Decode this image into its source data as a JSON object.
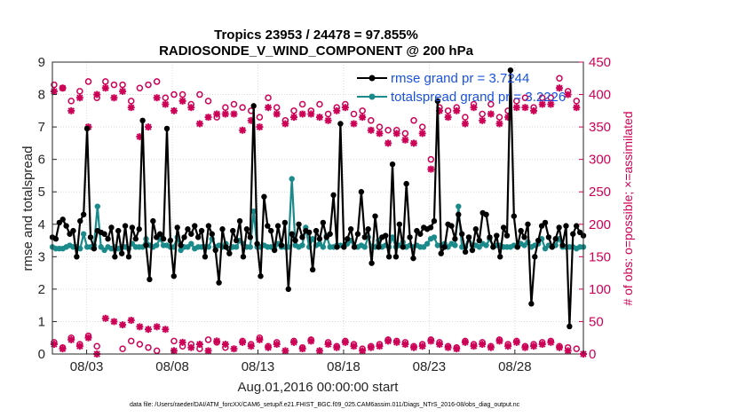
{
  "chart_data": {
    "type": "line",
    "title_line1": "Tropics 23953 / 24478 = 97.855%",
    "title_line2": "RADIOSONDE_V_WIND_COMPONENT @ 200 hPa",
    "xlabel": "Aug.01,2016 00:00:00 start",
    "ylabel_left": "rmse and totalspread",
    "ylabel_right": "# of obs: o=possible; ×=assimilated",
    "xlim": [
      1.0,
      32.0
    ],
    "ylim_left": [
      0,
      9
    ],
    "ylim_right": [
      0,
      450
    ],
    "x_ticks": [
      {
        "value": 3,
        "label": "08/03"
      },
      {
        "value": 8,
        "label": "08/08"
      },
      {
        "value": 13,
        "label": "08/13"
      },
      {
        "value": 18,
        "label": "08/18"
      },
      {
        "value": 23,
        "label": "08/23"
      },
      {
        "value": 28,
        "label": "08/28"
      }
    ],
    "y_ticks_left": [
      "0",
      "1",
      "2",
      "3",
      "4",
      "5",
      "6",
      "7",
      "8",
      "9"
    ],
    "y_ticks_right": [
      "0",
      "50",
      "100",
      "150",
      "200",
      "250",
      "300",
      "350",
      "400",
      "450"
    ],
    "legend": [
      {
        "label": "rmse grand pr = 3.7244",
        "color": "#000000"
      },
      {
        "label": "totalspread grand pr = 3.2226",
        "color": "#1a8a8a"
      }
    ],
    "footnote": "data file: /Users/raeder/DAI/ATM_forcXX/CAM6_setup/f.e21.FHIST_BGC.f09_025.CAM6assim.011/Diags_NTrS_2016-08/obs_diag_output.nc",
    "rmse": [
      3.6,
      3.55,
      4.05,
      4.15,
      3.95,
      3.7,
      3.8,
      3.0,
      4.1,
      4.3,
      6.95,
      3.6,
      3.25,
      3.8,
      3.75,
      3.7,
      3.55,
      3.9,
      3.0,
      3.8,
      3.1,
      3.95,
      3.0,
      3.9,
      3.55,
      3.85,
      7.2,
      3.35,
      2.3,
      4.1,
      3.6,
      3.7,
      3.55,
      6.95,
      3.5,
      2.4,
      3.9,
      3.35,
      3.6,
      3.85,
      3.7,
      3.95,
      3.6,
      3.8,
      3.0,
      3.95,
      3.7,
      3.2,
      2.2,
      3.85,
      3.3,
      3.1,
      3.8,
      3.5,
      4.1,
      3.0,
      3.85,
      3.6,
      7.65,
      3.4,
      2.4,
      4.85,
      3.95,
      3.8,
      3.2,
      3.95,
      3.35,
      4.05,
      2.0,
      3.7,
      3.5,
      4.0,
      3.6,
      3.8,
      3.75,
      2.6,
      3.8,
      3.55,
      4.05,
      3.6,
      3.7,
      4.9,
      3.3,
      7.1,
      3.3,
      3.55,
      3.85,
      3.3,
      3.7,
      5.0,
      3.6,
      3.85,
      2.8,
      4.25,
      3.3,
      3.6,
      3.65,
      3.0,
      5.85,
      3.0,
      4.0,
      3.3,
      5.25,
      3.6,
      2.95,
      3.8,
      3.7,
      3.9,
      3.85,
      3.9,
      4.1,
      7.8,
      3.1,
      3.3,
      4.0,
      3.95,
      3.55,
      4.3,
      3.7,
      3.15,
      3.6,
      3.2,
      3.85,
      3.5,
      4.35,
      4.3,
      3.6,
      3.3,
      3.65,
      3.0,
      3.9,
      3.65,
      8.75,
      4.25,
      3.3,
      3.8,
      3.6,
      4.0,
      1.55,
      3.0,
      3.5,
      3.95,
      4.05,
      3.6,
      3.3,
      3.55,
      3.9,
      3.35,
      3.95,
      0.85,
      3.7,
      3.95,
      3.75,
      3.65
    ],
    "totalspread": [
      3.3,
      3.25,
      3.25,
      3.25,
      3.3,
      3.35,
      3.3,
      3.3,
      3.25,
      3.7,
      3.3,
      3.3,
      3.35,
      4.55,
      3.3,
      3.2,
      3.3,
      3.25,
      3.3,
      3.25,
      3.3,
      3.3,
      3.25,
      3.4,
      3.3,
      3.3,
      3.3,
      3.55,
      3.35,
      3.3,
      3.35,
      3.55,
      3.35,
      3.35,
      3.3,
      3.3,
      3.6,
      3.2,
      3.3,
      3.3,
      3.4,
      3.25,
      3.3,
      3.3,
      3.3,
      3.3,
      3.55,
      3.3,
      3.35,
      3.3,
      3.4,
      3.25,
      3.3,
      3.3,
      3.5,
      3.4,
      3.3,
      3.3,
      4.4,
      3.3,
      3.3,
      3.35,
      3.3,
      3.3,
      3.3,
      3.4,
      3.3,
      3.3,
      3.3,
      5.4,
      3.35,
      3.3,
      3.35,
      3.9,
      3.3,
      3.55,
      3.35,
      3.4,
      3.3,
      3.65,
      3.3,
      3.3,
      3.35,
      3.35,
      3.3,
      3.4,
      3.5,
      3.3,
      3.3,
      3.35,
      3.3,
      3.6,
      3.3,
      3.3,
      3.5,
      3.3,
      3.35,
      3.3,
      3.6,
      3.3,
      3.35,
      3.45,
      3.3,
      3.35,
      3.3,
      3.35,
      3.3,
      3.3,
      3.4,
      3.55,
      3.6,
      3.35,
      3.35,
      3.4,
      3.3,
      3.4,
      3.35,
      4.55,
      3.3,
      3.3,
      3.6,
      3.35,
      3.35,
      3.3,
      3.4,
      3.35,
      3.55,
      3.3,
      3.35,
      3.35,
      3.3,
      3.3,
      3.3,
      3.35,
      3.3,
      3.4,
      3.35,
      3.45,
      3.3,
      3.35,
      3.4,
      3.55,
      3.25,
      3.35,
      3.3,
      3.35,
      3.55,
      3.3,
      3.3,
      3.3,
      3.3,
      3.25,
      3.3,
      3.3
    ],
    "obs_possible": [
      [
        1.1,
        415
      ],
      [
        1.6,
        410
      ],
      [
        2.1,
        390
      ],
      [
        2.6,
        405
      ],
      [
        3.1,
        420
      ],
      [
        3.6,
        395
      ],
      [
        4.1,
        420
      ],
      [
        4.6,
        415
      ],
      [
        5.1,
        415
      ],
      [
        5.6,
        390
      ],
      [
        6.1,
        410
      ],
      [
        6.6,
        415
      ],
      [
        7.1,
        420
      ],
      [
        7.6,
        395
      ],
      [
        8.1,
        400
      ],
      [
        8.6,
        400
      ],
      [
        9.1,
        385
      ],
      [
        9.6,
        400
      ],
      [
        10.1,
        390
      ],
      [
        10.6,
        365
      ],
      [
        11.1,
        380
      ],
      [
        11.6,
        385
      ],
      [
        12.1,
        380
      ],
      [
        12.6,
        375
      ],
      [
        13.1,
        365
      ],
      [
        13.6,
        395
      ],
      [
        14.1,
        380
      ],
      [
        14.6,
        360
      ],
      [
        15.1,
        375
      ],
      [
        15.6,
        385
      ],
      [
        16.1,
        375
      ],
      [
        16.6,
        385
      ],
      [
        17.1,
        370
      ],
      [
        17.6,
        380
      ],
      [
        18.1,
        385
      ],
      [
        18.6,
        370
      ],
      [
        19.1,
        375
      ],
      [
        19.6,
        360
      ],
      [
        20.1,
        350
      ],
      [
        20.6,
        345
      ],
      [
        21.1,
        345
      ],
      [
        21.6,
        340
      ],
      [
        22.1,
        360
      ],
      [
        22.6,
        350
      ],
      [
        23.1,
        300
      ],
      [
        23.6,
        380
      ],
      [
        24.1,
        375
      ],
      [
        24.6,
        380
      ],
      [
        25.1,
        365
      ],
      [
        25.6,
        385
      ],
      [
        26.1,
        370
      ],
      [
        26.6,
        385
      ],
      [
        27.1,
        365
      ],
      [
        27.6,
        375
      ],
      [
        28.1,
        390
      ],
      [
        28.6,
        395
      ],
      [
        29.1,
        380
      ],
      [
        29.6,
        395
      ],
      [
        30.1,
        395
      ],
      [
        30.6,
        425
      ],
      [
        31.1,
        405
      ],
      [
        31.6,
        390
      ]
    ],
    "obs_assimilated": [
      [
        1.1,
        405
      ],
      [
        1.6,
        410
      ],
      [
        2.1,
        375
      ],
      [
        2.6,
        395
      ],
      [
        3.1,
        350
      ],
      [
        3.6,
        400
      ],
      [
        4.1,
        410
      ],
      [
        4.6,
        395
      ],
      [
        5.1,
        405
      ],
      [
        5.6,
        380
      ],
      [
        6.1,
        335
      ],
      [
        6.6,
        350
      ],
      [
        7.1,
        395
      ],
      [
        7.6,
        385
      ],
      [
        8.1,
        375
      ],
      [
        8.6,
        390
      ],
      [
        9.1,
        380
      ],
      [
        9.6,
        355
      ],
      [
        10.1,
        365
      ],
      [
        10.6,
        370
      ],
      [
        11.1,
        370
      ],
      [
        11.6,
        370
      ],
      [
        12.1,
        345
      ],
      [
        12.6,
        360
      ],
      [
        13.1,
        350
      ],
      [
        13.6,
        380
      ],
      [
        14.1,
        370
      ],
      [
        14.6,
        355
      ],
      [
        15.1,
        365
      ],
      [
        15.6,
        370
      ],
      [
        16.1,
        370
      ],
      [
        16.6,
        365
      ],
      [
        17.1,
        360
      ],
      [
        17.6,
        375
      ],
      [
        18.1,
        380
      ],
      [
        18.6,
        355
      ],
      [
        19.1,
        365
      ],
      [
        19.6,
        345
      ],
      [
        20.1,
        340
      ],
      [
        20.6,
        325
      ],
      [
        21.1,
        340
      ],
      [
        21.6,
        330
      ],
      [
        22.1,
        325
      ],
      [
        22.6,
        340
      ],
      [
        23.1,
        285
      ],
      [
        23.6,
        375
      ],
      [
        24.1,
        365
      ],
      [
        24.6,
        375
      ],
      [
        25.1,
        355
      ],
      [
        25.6,
        380
      ],
      [
        26.1,
        360
      ],
      [
        26.6,
        370
      ],
      [
        27.1,
        355
      ],
      [
        27.6,
        365
      ],
      [
        28.1,
        380
      ],
      [
        28.6,
        380
      ],
      [
        29.1,
        375
      ],
      [
        29.6,
        385
      ],
      [
        30.1,
        385
      ],
      [
        30.6,
        410
      ],
      [
        31.1,
        400
      ],
      [
        31.6,
        380
      ]
    ],
    "obs_rejected_possible": [
      [
        1.1,
        18
      ],
      [
        1.6,
        10
      ],
      [
        2.1,
        25
      ],
      [
        2.6,
        15
      ],
      [
        3.1,
        28
      ],
      [
        3.6,
        12
      ],
      [
        5.1,
        8
      ],
      [
        5.6,
        20
      ],
      [
        6.1,
        15
      ],
      [
        6.6,
        10
      ],
      [
        7.1,
        5
      ],
      [
        8.1,
        20
      ],
      [
        8.6,
        12
      ],
      [
        9.1,
        15
      ],
      [
        9.6,
        8
      ],
      [
        10.1,
        22
      ],
      [
        10.6,
        18
      ],
      [
        11.1,
        10
      ],
      [
        12.1,
        20
      ],
      [
        12.6,
        15
      ],
      [
        13.1,
        25
      ],
      [
        13.6,
        12
      ],
      [
        14.1,
        18
      ],
      [
        15.1,
        20
      ],
      [
        15.6,
        10
      ],
      [
        16.1,
        22
      ],
      [
        17.1,
        18
      ],
      [
        17.6,
        12
      ],
      [
        18.1,
        20
      ],
      [
        18.6,
        15
      ],
      [
        19.1,
        8
      ],
      [
        19.6,
        12
      ],
      [
        20.1,
        15
      ],
      [
        20.6,
        22
      ],
      [
        21.1,
        20
      ],
      [
        21.6,
        18
      ],
      [
        22.1,
        12
      ],
      [
        22.6,
        15
      ],
      [
        23.1,
        22
      ],
      [
        23.6,
        18
      ],
      [
        24.1,
        12
      ],
      [
        24.6,
        10
      ],
      [
        25.1,
        20
      ],
      [
        25.6,
        15
      ],
      [
        26.1,
        18
      ],
      [
        26.6,
        12
      ],
      [
        27.1,
        22
      ],
      [
        27.6,
        15
      ],
      [
        28.1,
        20
      ],
      [
        28.6,
        12
      ],
      [
        29.1,
        15
      ],
      [
        29.6,
        18
      ],
      [
        30.1,
        20
      ],
      [
        30.6,
        12
      ],
      [
        31.1,
        10
      ],
      [
        31.6,
        8
      ]
    ],
    "obs_rejected_assimilated": [
      [
        1.1,
        15
      ],
      [
        1.6,
        8
      ],
      [
        2.1,
        22
      ],
      [
        2.6,
        12
      ],
      [
        3.1,
        25
      ],
      [
        3.6,
        0
      ],
      [
        4.1,
        55
      ],
      [
        4.6,
        50
      ],
      [
        5.1,
        45
      ],
      [
        5.6,
        52
      ],
      [
        6.1,
        42
      ],
      [
        6.6,
        38
      ],
      [
        7.1,
        42
      ],
      [
        7.6,
        38
      ],
      [
        8.1,
        5
      ],
      [
        8.6,
        18
      ],
      [
        9.1,
        10
      ],
      [
        9.6,
        15
      ],
      [
        10.1,
        5
      ],
      [
        10.6,
        20
      ],
      [
        11.1,
        15
      ],
      [
        11.6,
        8
      ],
      [
        12.1,
        18
      ],
      [
        12.6,
        12
      ],
      [
        13.1,
        22
      ],
      [
        13.6,
        10
      ],
      [
        14.1,
        15
      ],
      [
        14.6,
        5
      ],
      [
        15.1,
        18
      ],
      [
        15.6,
        8
      ],
      [
        16.1,
        20
      ],
      [
        16.6,
        5
      ],
      [
        17.1,
        15
      ],
      [
        17.6,
        10
      ],
      [
        18.1,
        18
      ],
      [
        18.6,
        12
      ],
      [
        19.1,
        5
      ],
      [
        19.6,
        10
      ],
      [
        20.1,
        12
      ],
      [
        20.6,
        20
      ],
      [
        21.1,
        18
      ],
      [
        21.6,
        15
      ],
      [
        22.1,
        10
      ],
      [
        22.6,
        12
      ],
      [
        23.1,
        20
      ],
      [
        23.6,
        15
      ],
      [
        24.1,
        10
      ],
      [
        24.6,
        8
      ],
      [
        25.1,
        18
      ],
      [
        25.6,
        12
      ],
      [
        26.1,
        15
      ],
      [
        26.6,
        10
      ],
      [
        27.1,
        20
      ],
      [
        27.6,
        12
      ],
      [
        28.1,
        18
      ],
      [
        28.6,
        10
      ],
      [
        29.1,
        12
      ],
      [
        29.6,
        15
      ],
      [
        30.1,
        18
      ],
      [
        30.6,
        10
      ],
      [
        31.1,
        5
      ],
      [
        32.0,
        0
      ]
    ]
  }
}
